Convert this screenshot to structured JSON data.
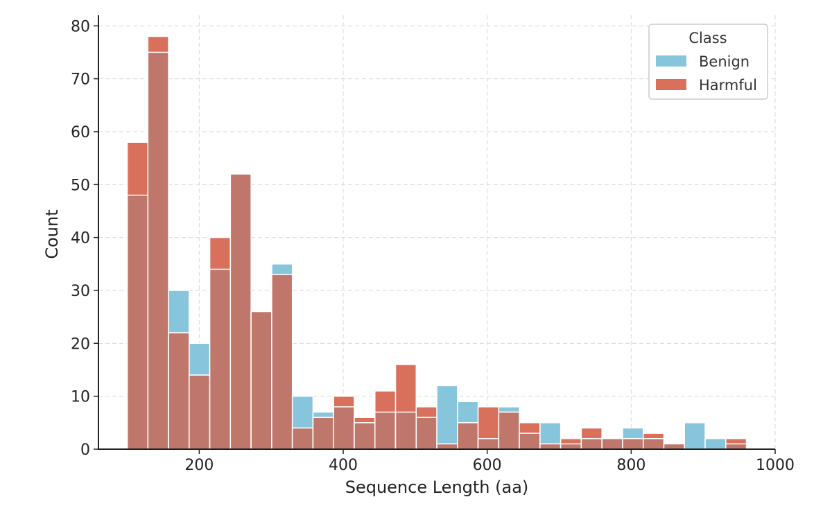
{
  "chart_data": {
    "type": "bar",
    "xlabel": "Sequence Length (aa)",
    "ylabel": "Count",
    "xlim": [
      60,
      1000
    ],
    "ylim": [
      0,
      82
    ],
    "xticks": [
      200,
      400,
      600,
      800,
      1000
    ],
    "yticks": [
      0,
      10,
      20,
      30,
      40,
      50,
      60,
      70,
      80
    ],
    "grid": true,
    "legend": {
      "title": "Class",
      "position": "top-right"
    },
    "bins": {
      "start": 100,
      "width": 28.67
    },
    "series": [
      {
        "name": "Benign",
        "color": "#87c5dc",
        "values": [
          48,
          75,
          30,
          20,
          34,
          52,
          26,
          35,
          10,
          7,
          8,
          5,
          7,
          7,
          6,
          12,
          9,
          2,
          8,
          3,
          5,
          1,
          2,
          2,
          4,
          2,
          1,
          5,
          2,
          1
        ]
      },
      {
        "name": "Harmful",
        "color": "#d9705c",
        "values": [
          58,
          78,
          22,
          14,
          40,
          52,
          26,
          33,
          4,
          6,
          10,
          6,
          11,
          16,
          8,
          1,
          5,
          8,
          7,
          5,
          1,
          2,
          4,
          2,
          2,
          3,
          1,
          0,
          0,
          2
        ]
      }
    ],
    "overlap_color": "#c0776b"
  }
}
